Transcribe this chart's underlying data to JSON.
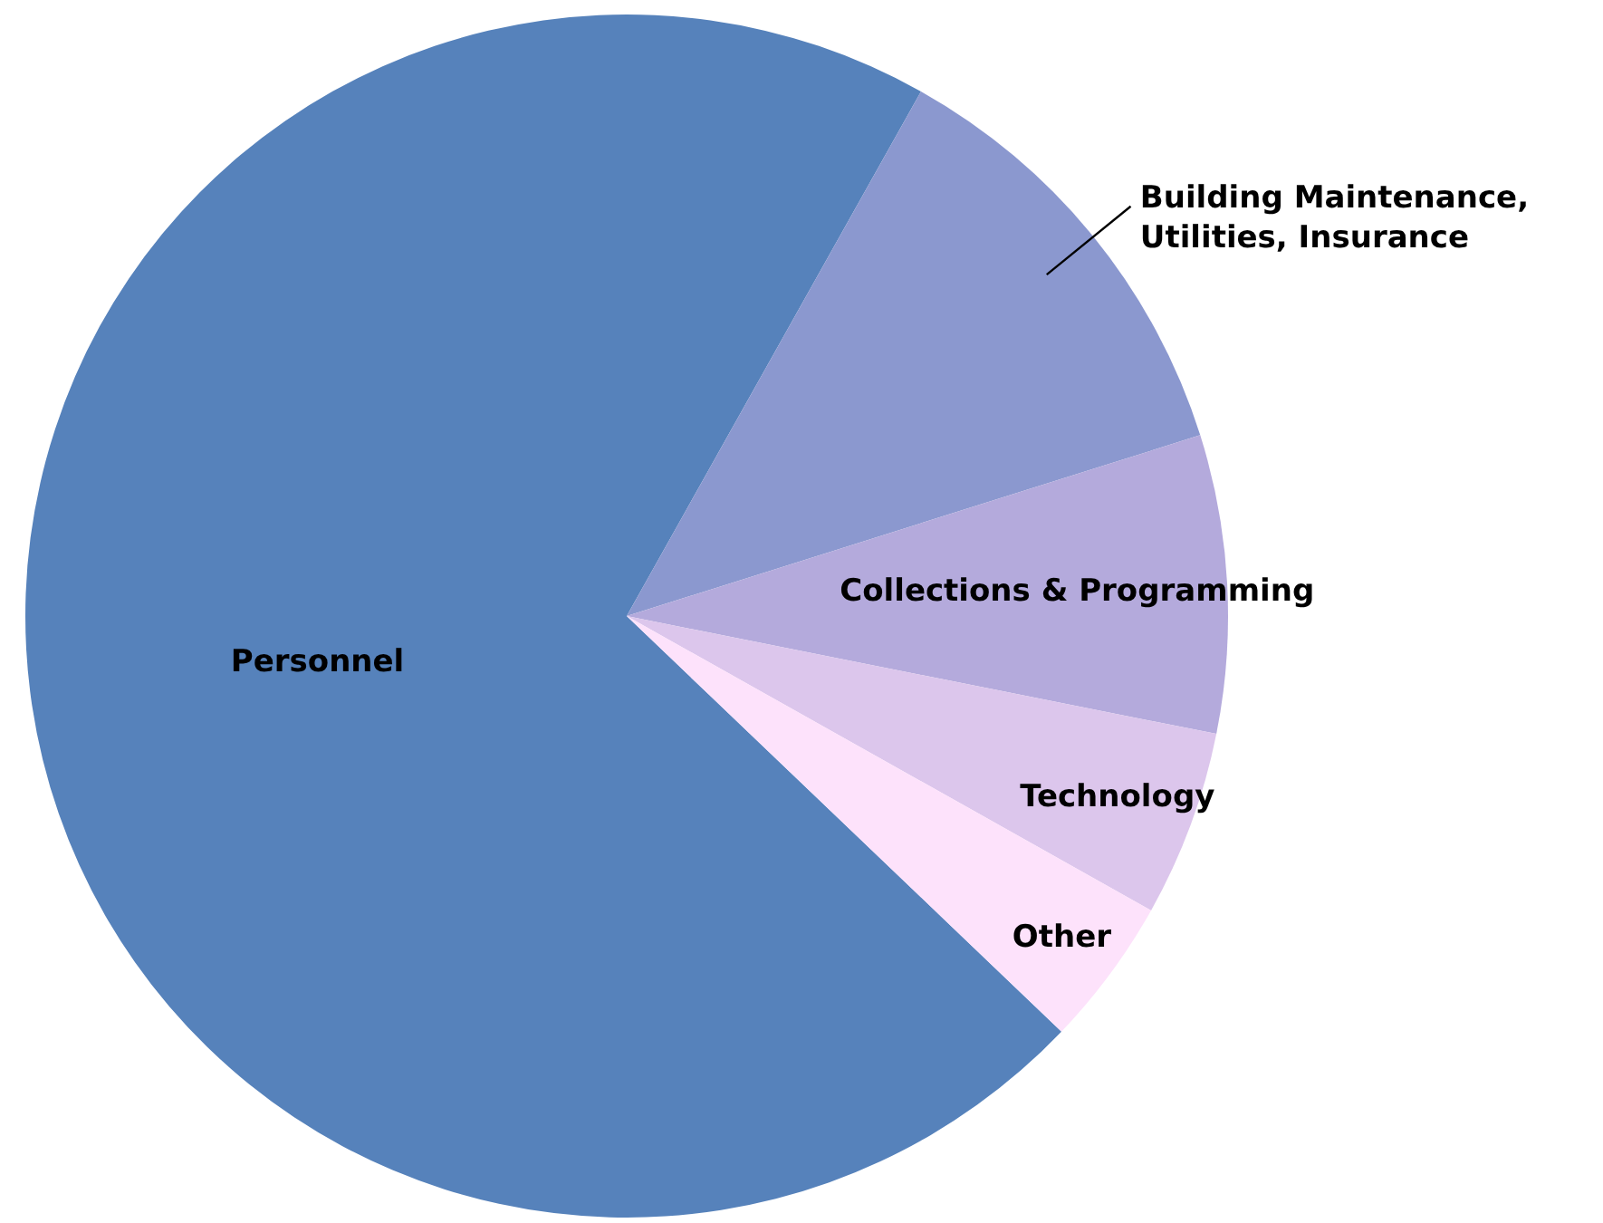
{
  "chart_data": {
    "type": "pie",
    "categories": [
      "Personnel",
      "Building Maintenance,\nUtilities, Insurance",
      "Collections & Programming",
      "Technology",
      "Other"
    ],
    "values": [
      71,
      12,
      8,
      5,
      4
    ],
    "colors": [
      "#5682bb",
      "#8b98cf",
      "#b4aadc",
      "#dcc6ec",
      "#fde2fb"
    ]
  }
}
